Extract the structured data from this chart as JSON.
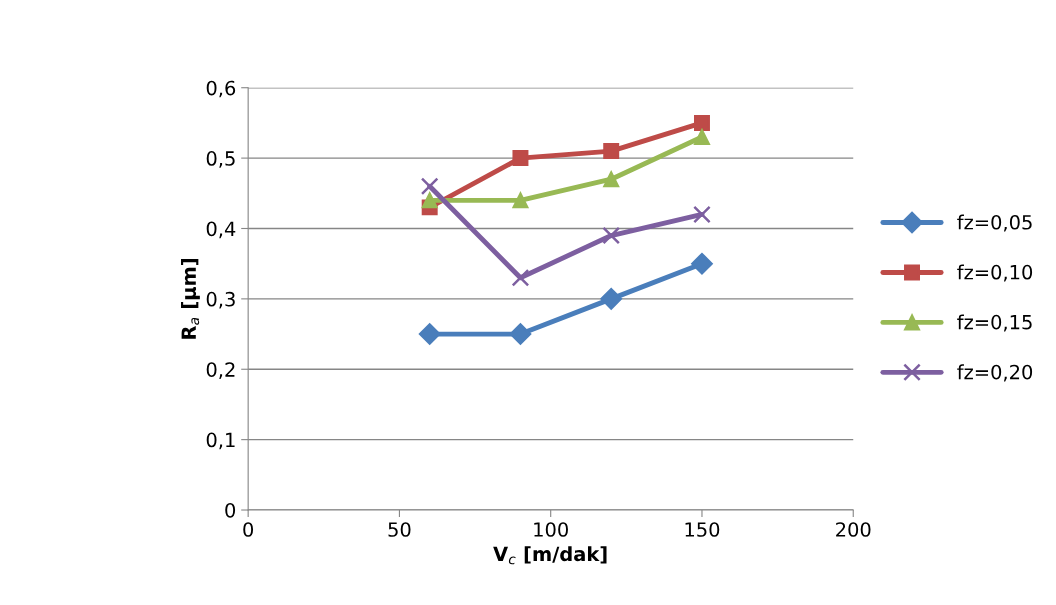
{
  "chart_data": {
    "type": "line",
    "xlabel": "V$_{c}$ [m/dak]",
    "ylabel": "R$_{a}$ [µm]",
    "xlim": [
      0,
      200
    ],
    "xticks": [
      0,
      50,
      100,
      150,
      200
    ],
    "ylim": [
      0,
      0.6
    ],
    "yticks": [
      {
        "value": 0,
        "label": "0"
      },
      {
        "value": 0.1,
        "label": "0,1"
      },
      {
        "value": 0.2,
        "label": "0,2"
      },
      {
        "value": 0.3,
        "label": "0,3"
      },
      {
        "value": 0.4,
        "label": "0,4"
      },
      {
        "value": 0.5,
        "label": "0,5"
      },
      {
        "value": 0.6,
        "label": "0,6"
      }
    ],
    "grid": "y",
    "legend": "right",
    "line_style": "solid",
    "series": [
      {
        "name": "fz=0,05",
        "color": "#4a7ebb",
        "marker": "diamond",
        "x": [
          60,
          90,
          120,
          150
        ],
        "values": [
          0.25,
          0.25,
          0.3,
          0.35
        ]
      },
      {
        "name": "fz=0,10",
        "color": "#be4b48",
        "marker": "square",
        "x": [
          60,
          90,
          120,
          150
        ],
        "values": [
          0.43,
          0.5,
          0.51,
          0.55
        ]
      },
      {
        "name": "fz=0,15",
        "color": "#98b954",
        "marker": "triangle",
        "x": [
          60,
          90,
          120,
          150
        ],
        "values": [
          0.44,
          0.44,
          0.47,
          0.53
        ]
      },
      {
        "name": "fz=0,20",
        "color": "#7d5fa0",
        "marker": "cross",
        "x": [
          60,
          90,
          120,
          150
        ],
        "values": [
          0.46,
          0.33,
          0.39,
          0.42
        ]
      }
    ]
  }
}
